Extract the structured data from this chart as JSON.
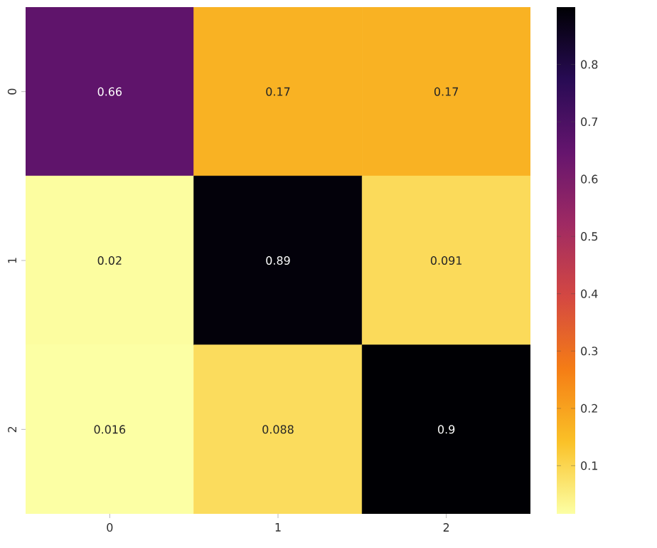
{
  "chart_data": {
    "type": "heatmap",
    "categories": [
      "0",
      "1",
      "2"
    ],
    "y_categories": [
      "0",
      "1",
      "2"
    ],
    "cells": [
      [
        0.66,
        0.17,
        0.17
      ],
      [
        0.02,
        0.89,
        0.091
      ],
      [
        0.016,
        0.088,
        0.9
      ]
    ],
    "clim": [
      0.016,
      0.9
    ],
    "cticks": [
      0.1,
      0.2,
      0.3,
      0.4,
      0.5,
      0.6,
      0.7,
      0.8
    ],
    "data_labels": true
  }
}
